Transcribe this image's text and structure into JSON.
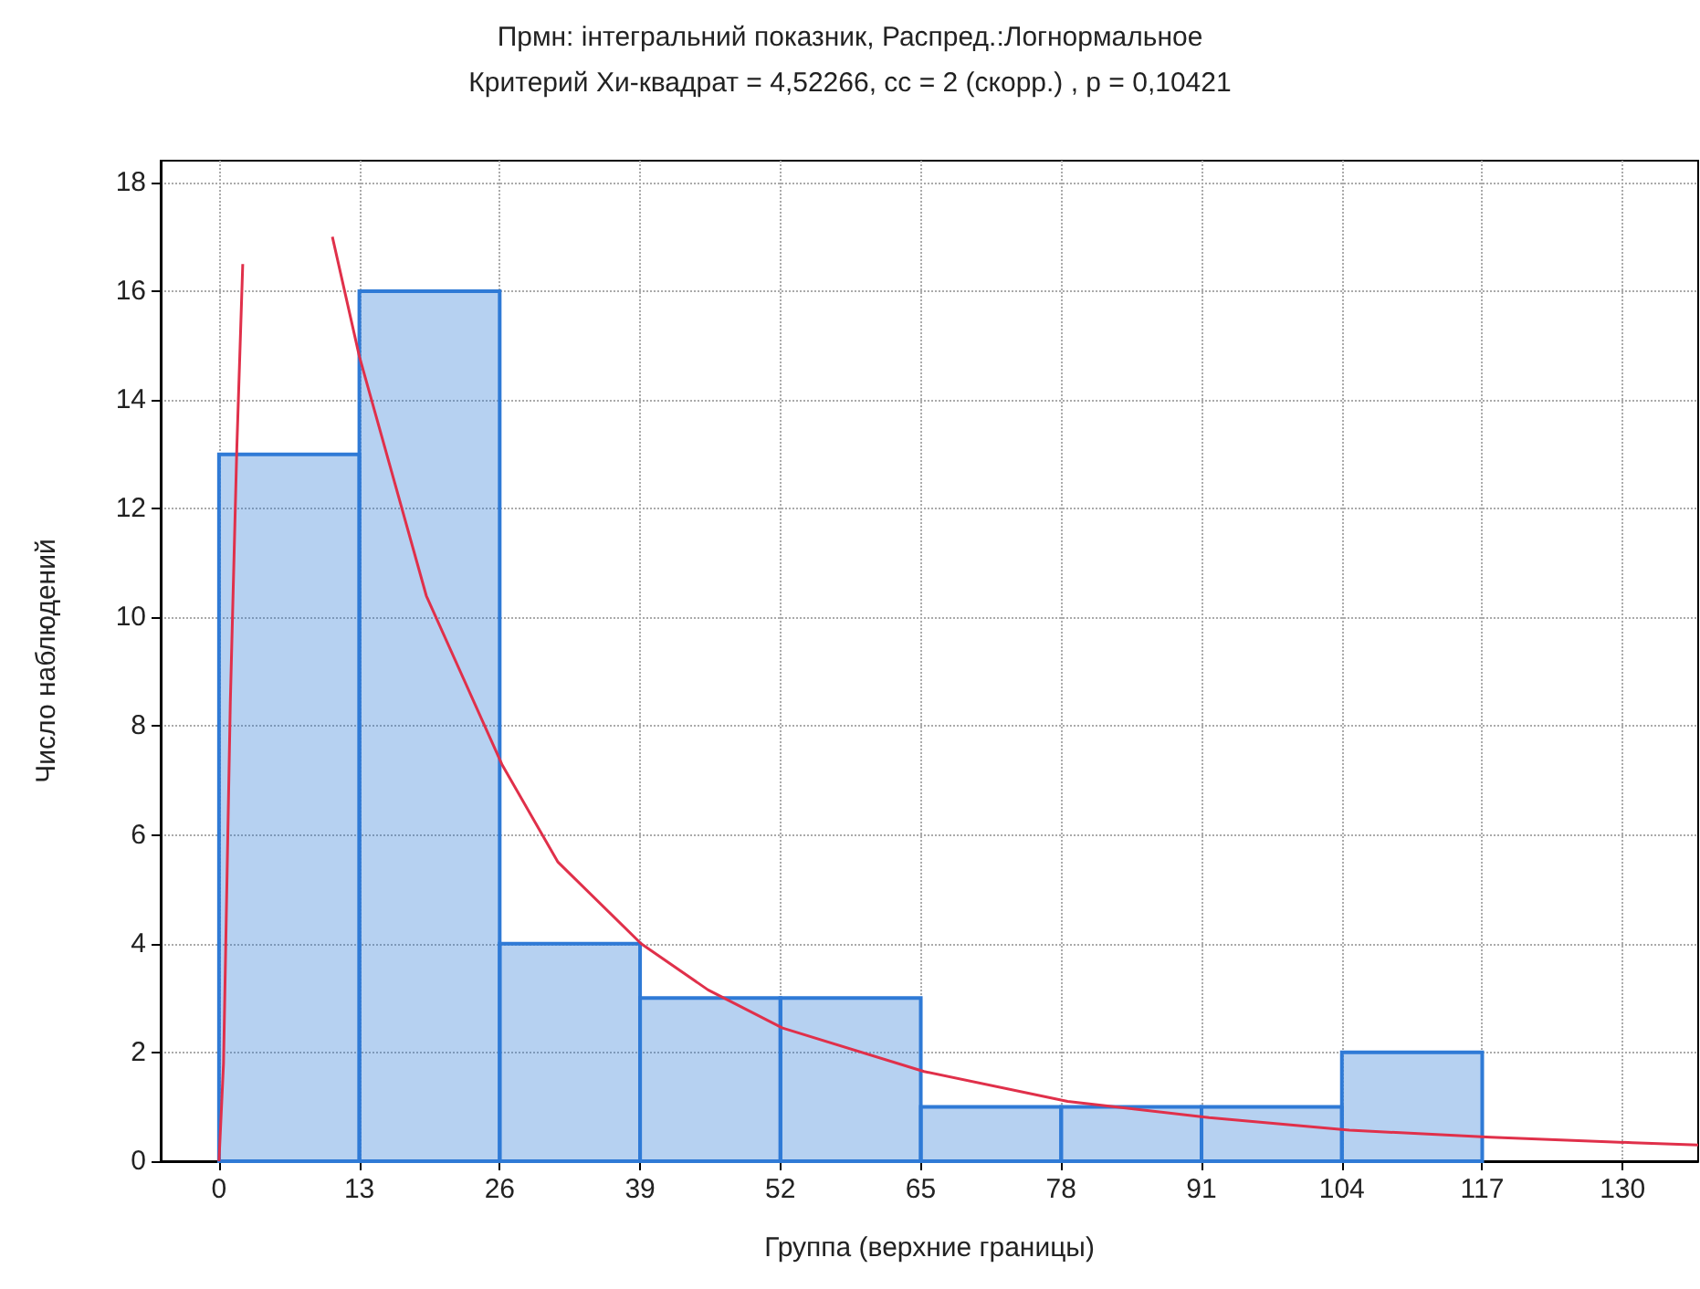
{
  "chart_data": {
    "type": "histogram",
    "title": "Прмн: інтегральний показник, Распред.:Логнормальное",
    "subtitle": "Критерий Хи-квадрат = 4,52266, cc = 2 (скорр.) , p = 0,10421",
    "xlabel": "Группа (верхние границы)",
    "ylabel": "Число наблюдений",
    "series": [
      {
        "type": "histogram",
        "color": "#2f7ad6",
        "bins": [
          0,
          13,
          26,
          39,
          52,
          65,
          78,
          91,
          104,
          117
        ],
        "values": [
          13,
          16,
          4,
          3,
          3,
          1,
          1,
          1,
          2
        ]
      },
      {
        "type": "line",
        "color": "#e0304a",
        "marker": "none",
        "x": [
          0,
          0.42,
          1.05,
          1.65,
          2.2,
          2.6,
          9.3,
          10.5,
          13,
          19.2,
          26.2,
          31.4,
          39.1,
          45.3,
          52.2,
          65.3,
          78.6,
          91.7,
          104.7,
          117.8,
          130.9,
          137
        ],
        "values": [
          0,
          1.8,
          8.45,
          13.1,
          16.5,
          null,
          null,
          17,
          14.8,
          10.4,
          7.3,
          5.5,
          4.0,
          3.15,
          2.45,
          1.65,
          1.1,
          0.8,
          0.57,
          0.44,
          0.34,
          0.3
        ]
      }
    ],
    "xlim": [
      -5.4,
      137
    ],
    "xticks": [
      0,
      13,
      26,
      39,
      52,
      65,
      78,
      91,
      104,
      117,
      130
    ],
    "ylim": [
      0,
      18.4
    ],
    "yticks": [
      0,
      2,
      4,
      6,
      8,
      10,
      12,
      14,
      16,
      18
    ],
    "grid": true
  }
}
